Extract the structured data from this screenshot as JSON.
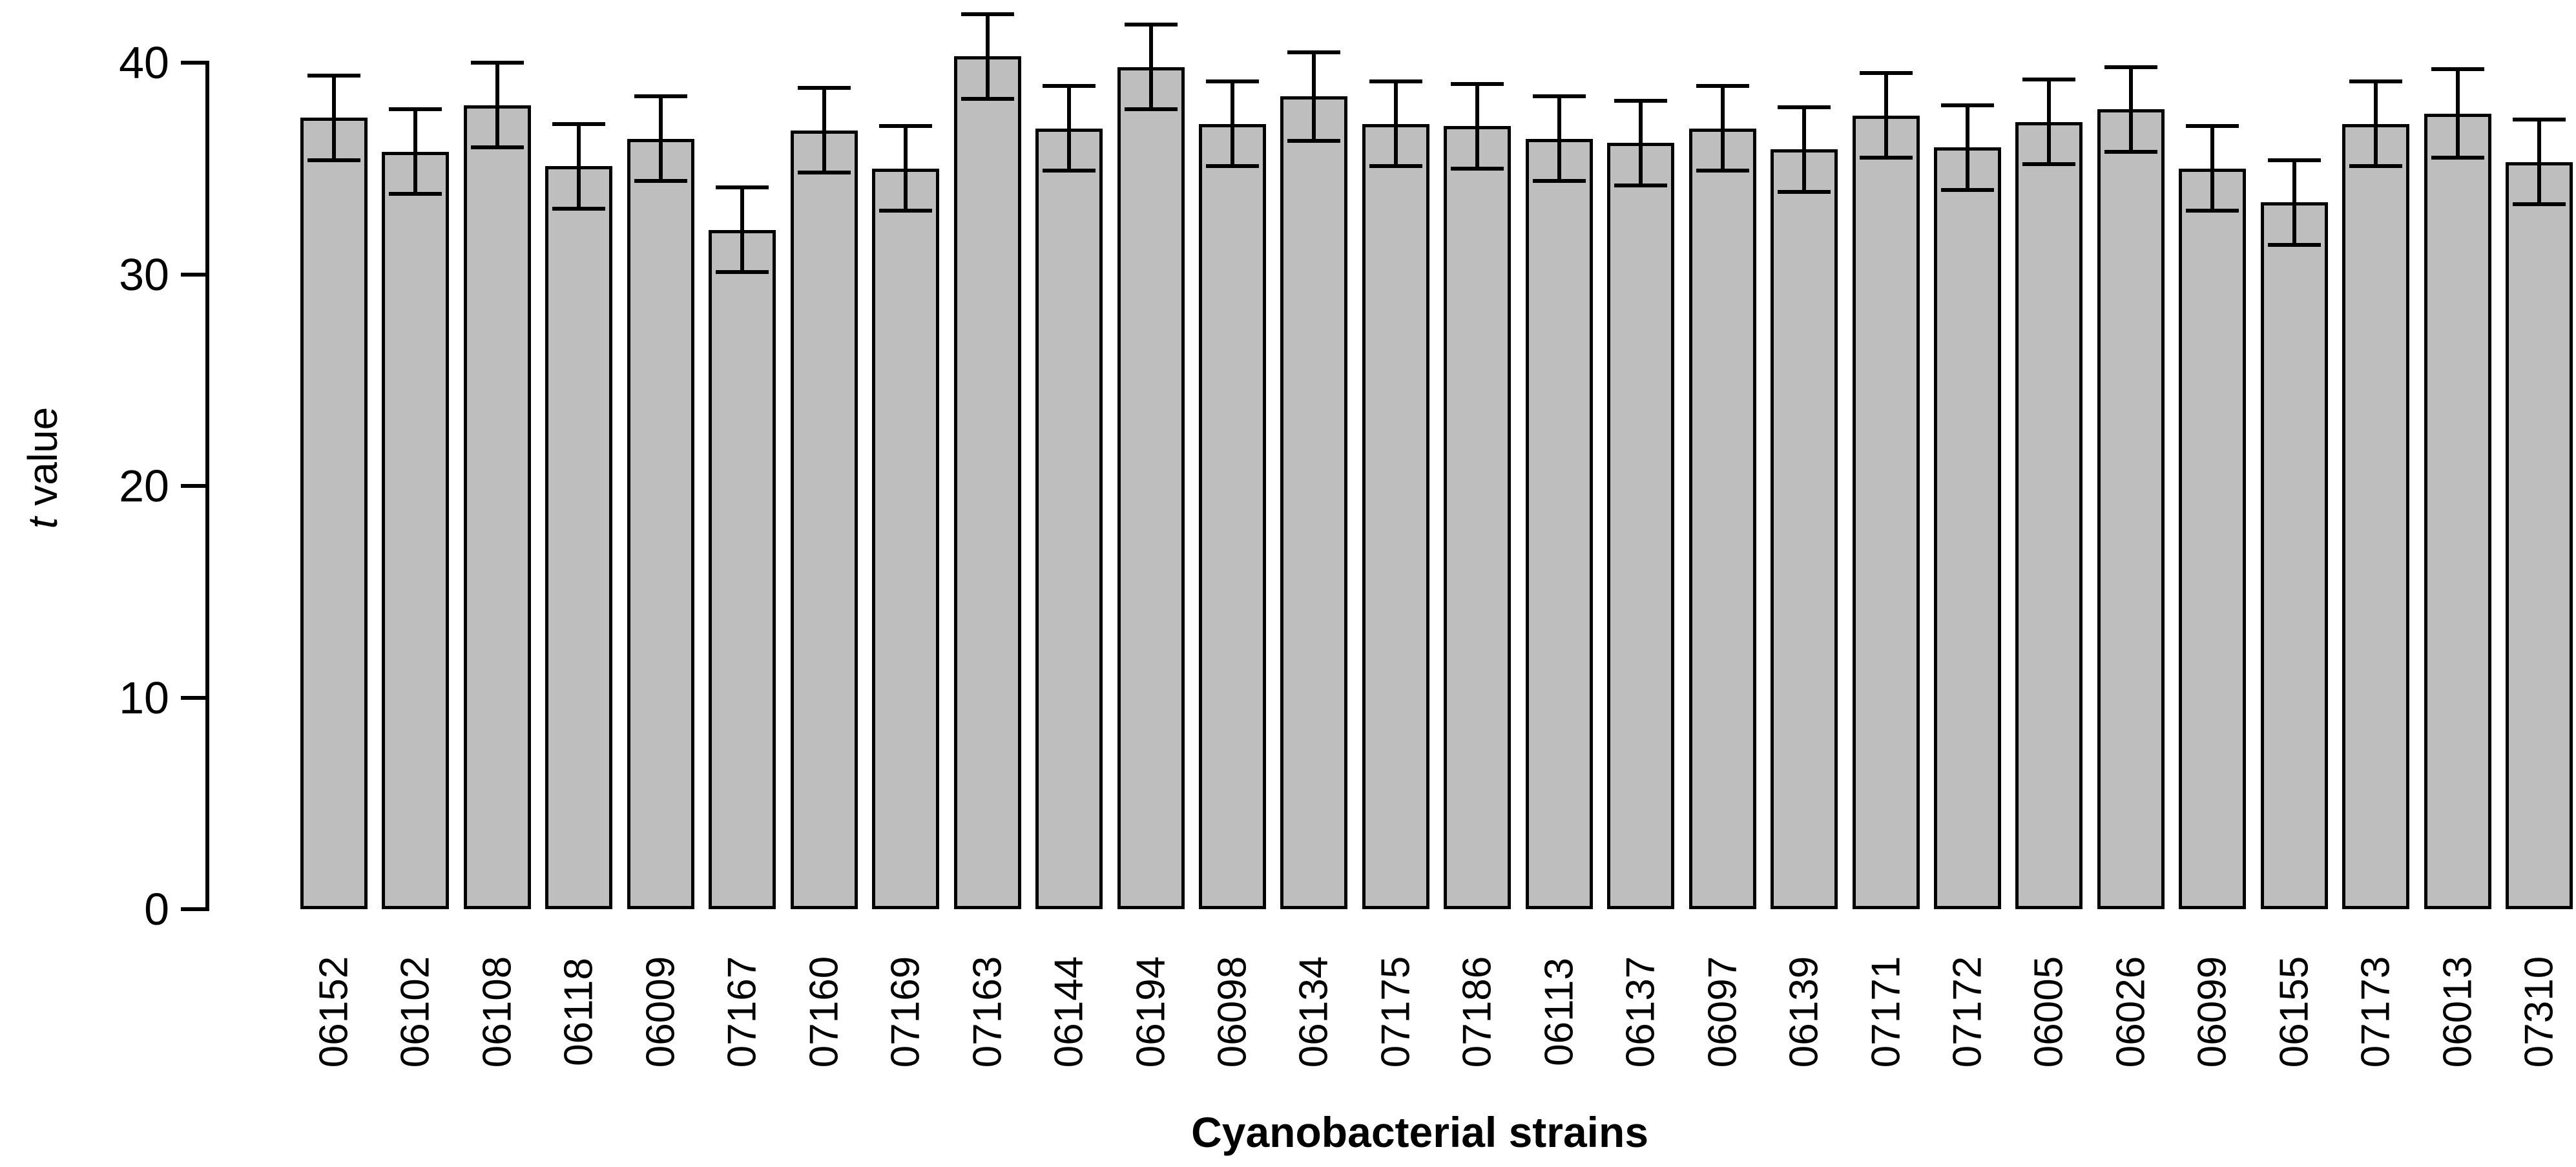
{
  "figure": {
    "background_color": "#ffffff",
    "bar_fill_color": "#bebebe",
    "bar_border_color": "#000000",
    "error_bar_color": "#000000",
    "axis_color": "#000000",
    "text_color": "#000000"
  },
  "chart_data": {
    "type": "bar",
    "title": "",
    "xlabel": "Cyanobacterial strains",
    "ylabel": "t value",
    "ylabel_italic_part": "t",
    "ylabel_rest": " value",
    "ylim": [
      0,
      42.5
    ],
    "yticks": [
      0,
      10,
      20,
      30,
      40
    ],
    "ytick_labels": [
      "0",
      "10",
      "20",
      "30",
      "40"
    ],
    "grid": false,
    "legend": "none",
    "error_bars": true,
    "x_tick_rotation_degrees": 90,
    "categories": [
      "06152",
      "06102",
      "06108",
      "06118",
      "06009",
      "07167",
      "07160",
      "07169",
      "07163",
      "06144",
      "06194",
      "06098",
      "06134",
      "07175",
      "07186",
      "06113",
      "06137",
      "06097",
      "06139",
      "07171",
      "07172",
      "06005",
      "06026",
      "06099",
      "06155",
      "07173",
      "06013",
      "07310"
    ],
    "values": [
      37.4,
      35.8,
      38.0,
      35.1,
      36.4,
      32.1,
      36.8,
      35.0,
      40.3,
      36.9,
      39.8,
      37.1,
      38.4,
      37.1,
      37.0,
      36.4,
      36.2,
      36.9,
      35.9,
      37.5,
      36.0,
      37.2,
      37.8,
      35.0,
      33.4,
      37.1,
      37.6,
      35.3
    ],
    "errors": [
      2.0,
      2.0,
      2.0,
      2.0,
      2.0,
      2.0,
      2.0,
      2.0,
      2.0,
      2.0,
      2.0,
      2.0,
      2.1,
      2.0,
      2.0,
      2.0,
      2.0,
      2.0,
      2.0,
      2.0,
      2.0,
      2.0,
      2.0,
      2.0,
      2.0,
      2.0,
      2.1,
      2.0
    ]
  }
}
